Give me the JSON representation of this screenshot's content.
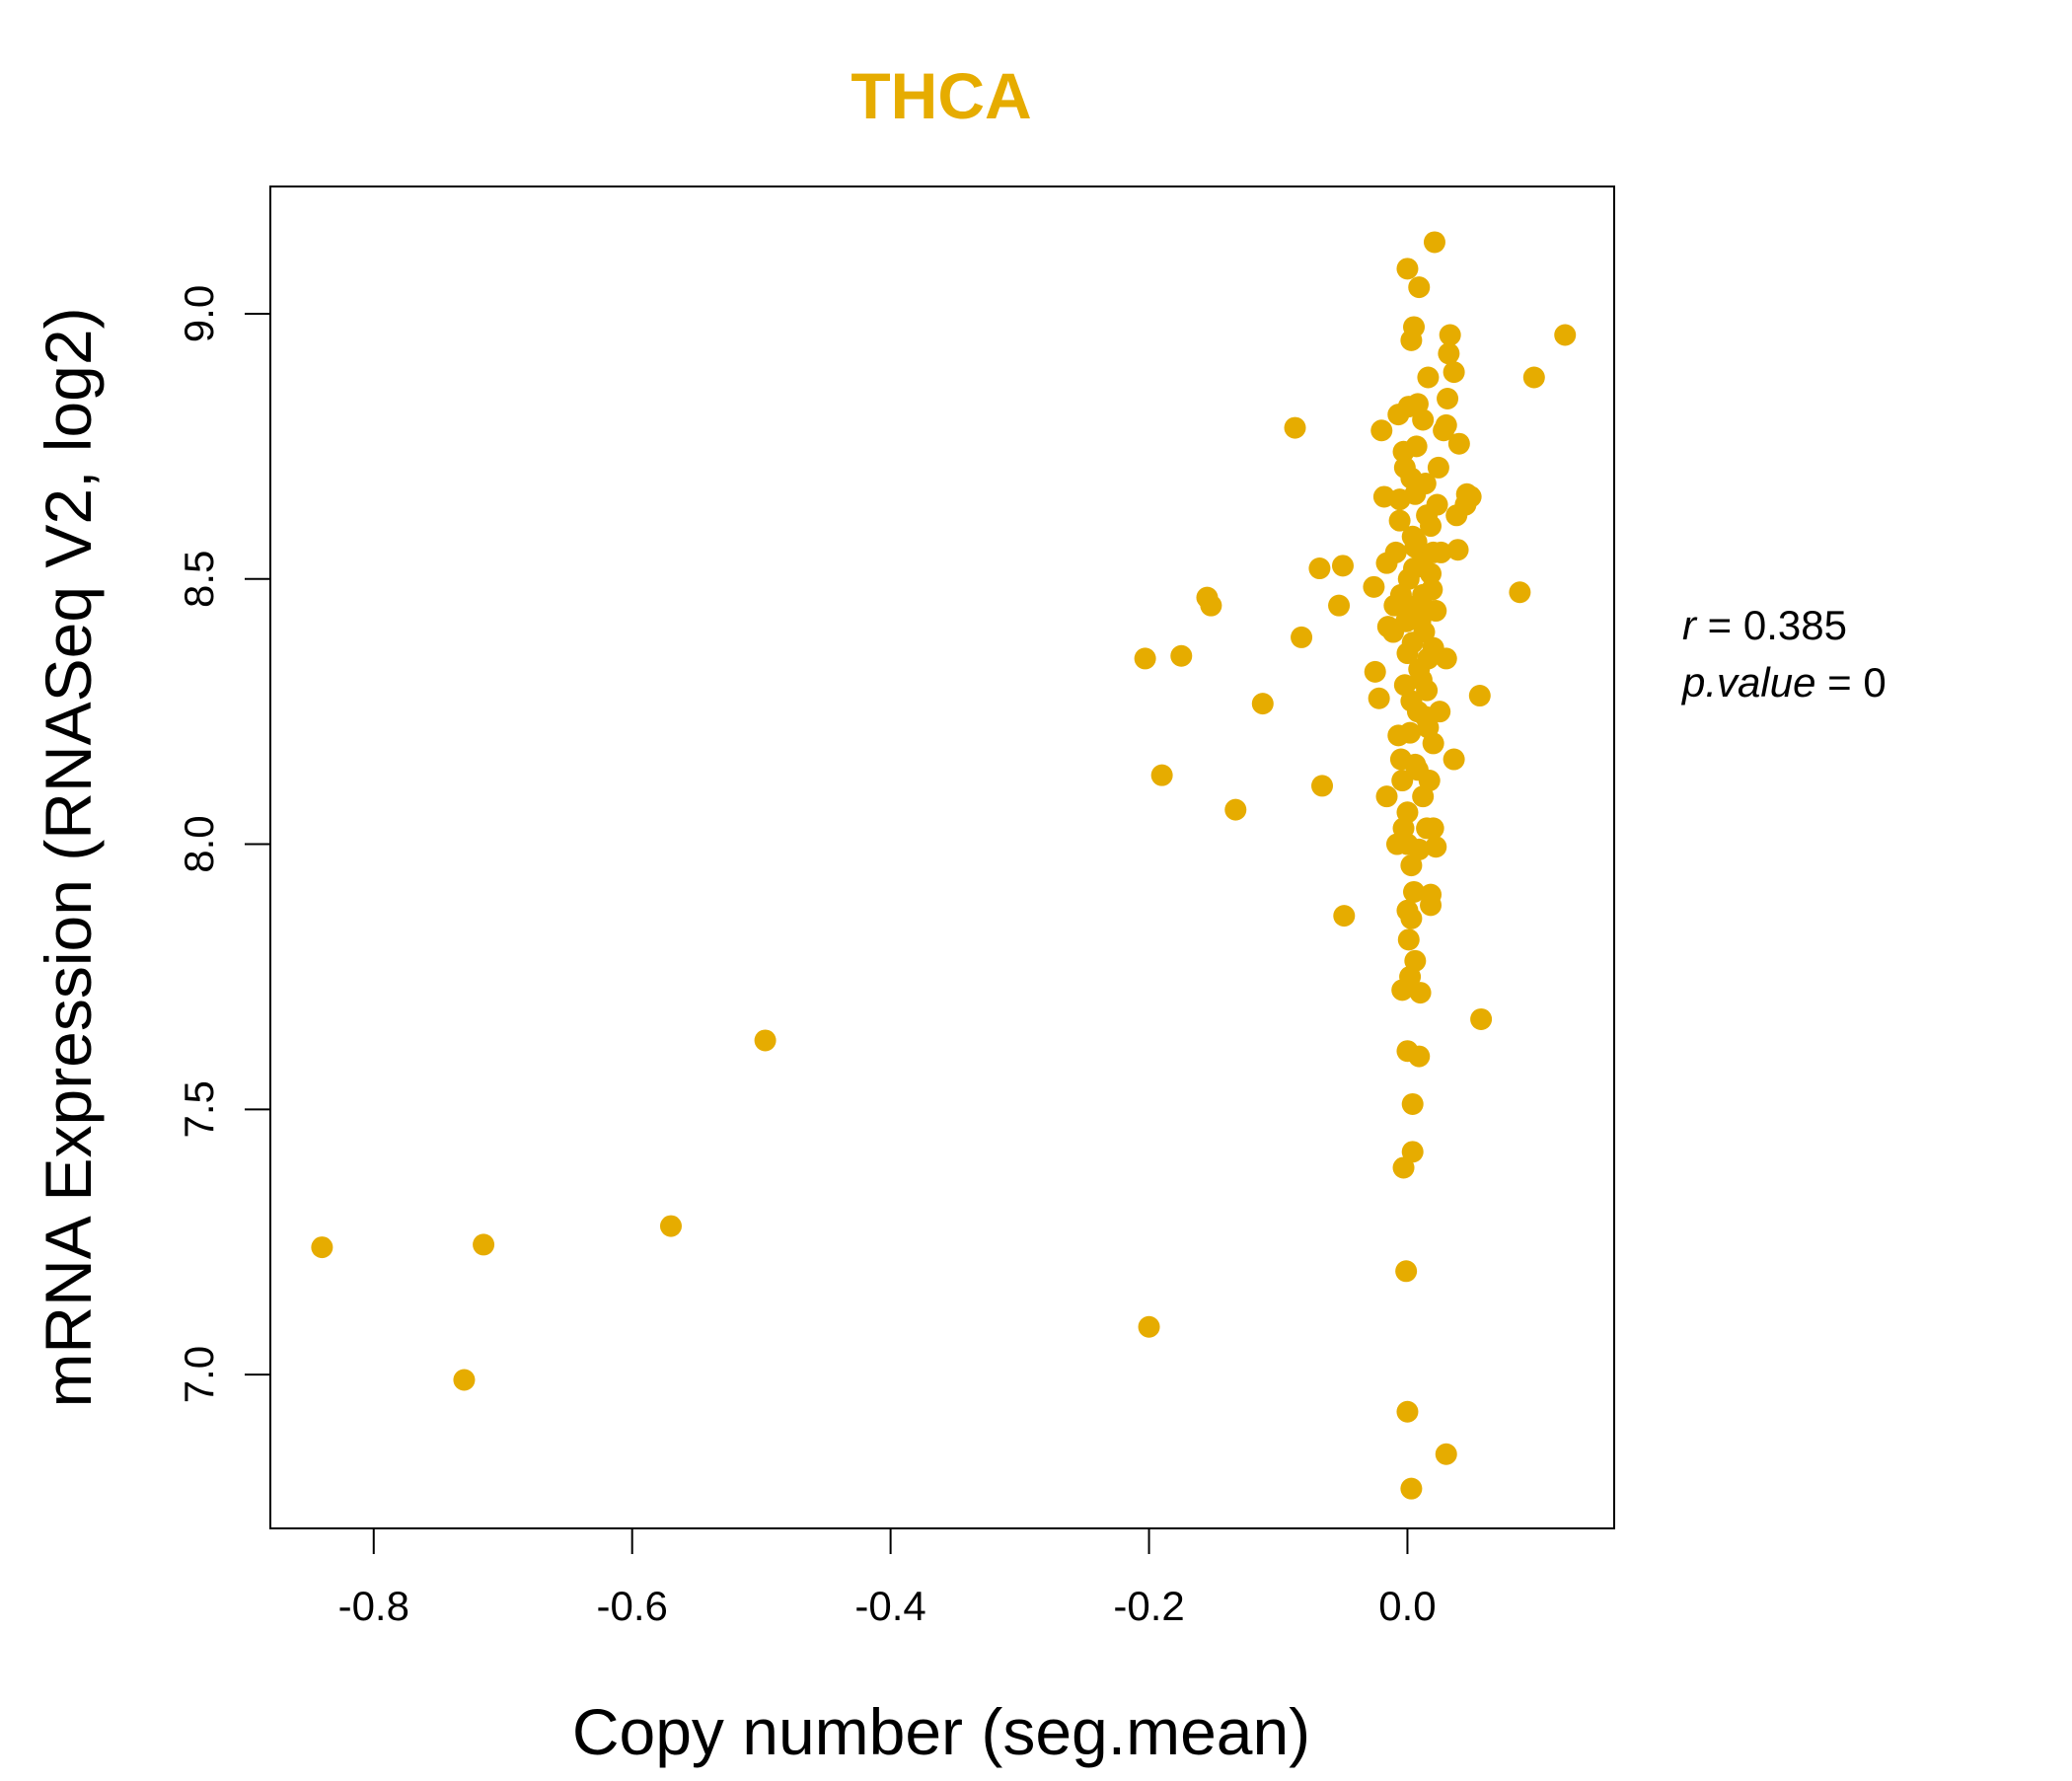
{
  "colors": {
    "accent": "#E6AC00",
    "axis": "#000000",
    "background": "#FFFFFF"
  },
  "chart_data": {
    "type": "scatter",
    "title": "THCA",
    "xlabel": "Copy number (seg.mean)",
    "ylabel": "mRNA Expression (RNASeq V2, log2)",
    "xlim": [
      -0.88,
      0.16
    ],
    "ylim": [
      6.71,
      9.24
    ],
    "xticks": [
      -0.8,
      -0.6,
      -0.4,
      -0.2,
      0.0
    ],
    "xtick_labels": [
      "-0.8",
      "-0.6",
      "-0.4",
      "-0.2",
      "0.0"
    ],
    "yticks": [
      7.0,
      7.5,
      8.0,
      8.5,
      9.0
    ],
    "ytick_labels": [
      "7.0",
      "7.5",
      "8.0",
      "8.5",
      "9.0"
    ],
    "grid": false,
    "stats": {
      "r_label": "r",
      "r_value": "0.385",
      "p_label": "p.value",
      "p_value": "0"
    },
    "points": [
      [
        -0.84,
        7.24
      ],
      [
        -0.73,
        6.99
      ],
      [
        -0.715,
        7.245
      ],
      [
        -0.57,
        7.28
      ],
      [
        -0.497,
        7.63
      ],
      [
        -0.2,
        7.09
      ],
      [
        -0.203,
        8.35
      ],
      [
        -0.175,
        8.355
      ],
      [
        -0.19,
        8.13
      ],
      [
        -0.155,
        8.465
      ],
      [
        -0.152,
        8.45
      ],
      [
        -0.133,
        8.065
      ],
      [
        -0.112,
        8.265
      ],
      [
        -0.087,
        8.785
      ],
      [
        -0.082,
        8.39
      ],
      [
        -0.068,
        8.52
      ],
      [
        -0.066,
        8.11
      ],
      [
        -0.053,
        8.45
      ],
      [
        -0.05,
        8.525
      ],
      [
        -0.049,
        7.865
      ],
      [
        0.122,
        8.96
      ],
      [
        0.098,
        8.88
      ],
      [
        0.087,
        8.475
      ],
      [
        0.057,
        7.67
      ],
      [
        0.056,
        8.28
      ],
      [
        0.033,
        8.96
      ],
      [
        0.03,
        8.35
      ],
      [
        0.036,
        8.16
      ],
      [
        0.038,
        8.62
      ],
      [
        0.039,
        8.555
      ],
      [
        0.046,
        8.66
      ],
      [
        0.049,
        8.655
      ],
      [
        0.045,
        8.64
      ],
      [
        0.04,
        8.755
      ],
      [
        0.032,
        8.925
      ],
      [
        0.036,
        8.89
      ],
      [
        0.031,
        8.84
      ],
      [
        0.03,
        8.79
      ],
      [
        0.021,
        9.135
      ],
      [
        0.0,
        9.085
      ],
      [
        0.009,
        9.05
      ],
      [
        0.005,
        8.975
      ],
      [
        0.003,
        8.95
      ],
      [
        0.016,
        8.88
      ],
      [
        -0.02,
        8.78
      ],
      [
        -0.018,
        8.655
      ],
      [
        -0.016,
        8.53
      ],
      [
        -0.026,
        8.485
      ],
      [
        -0.015,
        8.41
      ],
      [
        -0.025,
        8.325
      ],
      [
        -0.022,
        8.275
      ],
      [
        -0.016,
        8.09
      ],
      [
        0.03,
        6.85
      ],
      [
        0.003,
        6.785
      ],
      [
        0.0,
        6.93
      ],
      [
        -0.001,
        7.195
      ],
      [
        -0.003,
        7.39
      ],
      [
        0.004,
        7.42
      ],
      [
        0.004,
        7.51
      ],
      [
        0.009,
        7.6
      ],
      [
        0.0,
        7.61
      ],
      [
        -0.004,
        7.725
      ],
      [
        0.01,
        7.72
      ],
      [
        0.002,
        7.75
      ],
      [
        0.006,
        7.78
      ],
      [
        0.001,
        7.82
      ],
      [
        0.003,
        7.86
      ],
      [
        0.0,
        7.875
      ],
      [
        0.005,
        7.91
      ],
      [
        0.018,
        7.885
      ],
      [
        0.018,
        7.905
      ],
      [
        0.022,
        7.995
      ],
      [
        0.015,
        8.03
      ],
      [
        0.02,
        8.03
      ],
      [
        -0.004,
        8.12
      ],
      [
        0.0,
        8.06
      ],
      [
        -0.008,
        8.0
      ],
      [
        0.006,
        8.15
      ],
      [
        0.016,
        8.22
      ],
      [
        0.02,
        8.19
      ],
      [
        -0.007,
        8.205
      ],
      [
        0.011,
        8.31
      ],
      [
        -0.011,
        8.4
      ],
      [
        0.012,
        8.47
      ],
      [
        0.022,
        8.44
      ],
      [
        0.006,
        8.56
      ],
      [
        0.014,
        8.68
      ],
      [
        0.024,
        8.71
      ],
      [
        -0.006,
        8.61
      ],
      [
        0.018,
        8.6
      ],
      [
        0.001,
        8.825
      ],
      [
        0.008,
        8.83
      ],
      [
        0.028,
        8.78
      ],
      [
        -0.003,
        8.74
      ],
      [
        -0.006,
        8.65
      ],
      [
        0.02,
        8.55
      ],
      [
        0.004,
        8.38
      ],
      [
        -0.01,
        8.45
      ],
      [
        0.016,
        8.35
      ],
      [
        -0.002,
        8.3
      ],
      [
        0.008,
        8.25
      ],
      [
        0.025,
        8.25
      ],
      [
        -0.005,
        8.16
      ],
      [
        0.012,
        8.09
      ],
      [
        0.0,
        8.0
      ],
      [
        0.003,
        7.96
      ],
      [
        -0.002,
        8.71
      ],
      [
        0.005,
        8.52
      ],
      [
        0.0,
        8.45
      ],
      [
        0.01,
        8.42
      ],
      [
        0.015,
        8.62
      ],
      [
        0.007,
        8.75
      ],
      [
        0.019,
        8.48
      ],
      [
        0.003,
        8.27
      ],
      [
        0.017,
        8.12
      ],
      [
        0.0,
        8.36
      ],
      [
        0.008,
        8.14
      ],
      [
        -0.009,
        8.55
      ],
      [
        0.023,
        8.64
      ],
      [
        0.011,
        8.53
      ],
      [
        0.004,
        8.58
      ],
      [
        -0.005,
        8.47
      ],
      [
        0.013,
        8.4
      ],
      [
        0.009,
        8.33
      ],
      [
        0.001,
        8.5
      ],
      [
        0.006,
        8.66
      ],
      [
        -0.007,
        8.81
      ],
      [
        0.012,
        8.8
      ],
      [
        0.02,
        8.37
      ],
      [
        0.026,
        8.55
      ],
      [
        0.002,
        8.21
      ],
      [
        0.015,
        8.29
      ],
      [
        -0.003,
        8.03
      ],
      [
        0.009,
        7.99
      ],
      [
        0.007,
        8.57
      ],
      [
        0.003,
        8.69
      ],
      [
        0.018,
        8.51
      ],
      [
        0.011,
        8.45
      ],
      [
        -0.001,
        8.42
      ],
      [
        0.014,
        8.24
      ]
    ]
  }
}
